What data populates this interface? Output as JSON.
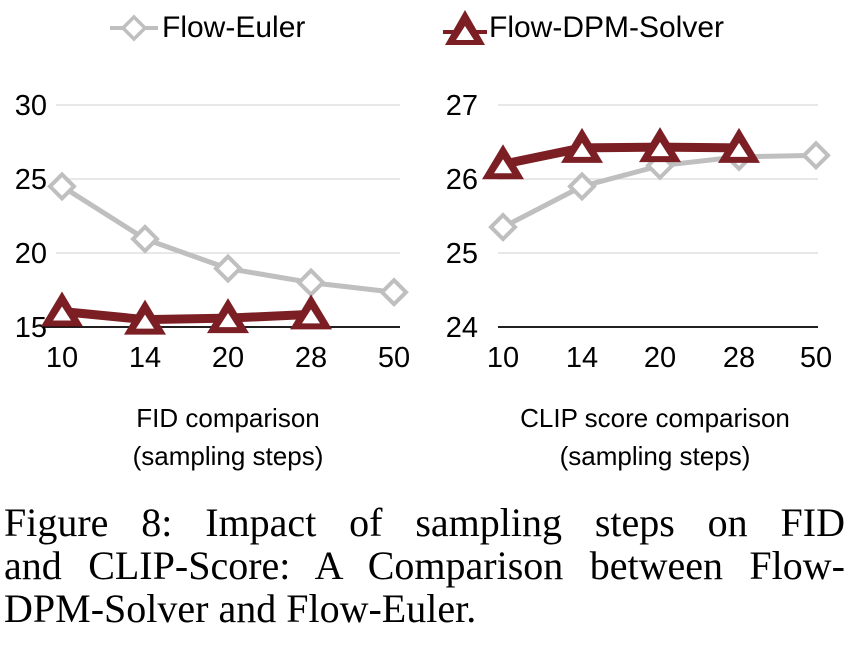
{
  "legend": {
    "items": [
      {
        "label": "Flow-Euler",
        "marker": "diamond"
      },
      {
        "label": "Flow-DPM-Solver",
        "marker": "triangle"
      }
    ]
  },
  "colors": {
    "flow_euler": "#BFBFBF",
    "flow_dpm_solver": "#7B1F25",
    "gridline": "#D9D9D9",
    "axis": "#000000"
  },
  "chart_data": [
    {
      "type": "line",
      "title": "FID comparison",
      "subtitle": "(sampling steps)",
      "categories": [
        "10",
        "14",
        "20",
        "28",
        "50"
      ],
      "ylim": [
        15,
        30
      ],
      "yticks": [
        15,
        20,
        25,
        30
      ],
      "grid": true,
      "legend_position": "top",
      "series": [
        {
          "name": "Flow-Euler",
          "marker": "diamond",
          "color": "#BFBFBF",
          "values": [
            24.5,
            20.95,
            18.95,
            18.0,
            17.35
          ]
        },
        {
          "name": "Flow-DPM-Solver",
          "marker": "triangle",
          "color": "#7B1F25",
          "values": [
            16.05,
            15.5,
            15.6,
            15.85,
            null
          ]
        }
      ]
    },
    {
      "type": "line",
      "title": "CLIP score comparison",
      "subtitle": "(sampling steps)",
      "categories": [
        "10",
        "14",
        "20",
        "28",
        "50"
      ],
      "ylim": [
        24,
        27
      ],
      "yticks": [
        24,
        25,
        26,
        27
      ],
      "grid": true,
      "legend_position": "top",
      "series": [
        {
          "name": "Flow-Euler",
          "marker": "diamond",
          "color": "#BFBFBF",
          "values": [
            25.35,
            25.9,
            26.18,
            26.3,
            26.32
          ]
        },
        {
          "name": "Flow-DPM-Solver",
          "marker": "triangle",
          "color": "#7B1F25",
          "values": [
            26.2,
            26.42,
            26.43,
            26.42,
            null
          ]
        }
      ]
    }
  ],
  "caption": {
    "lines": [
      "Figure 8:  Impact of sampling steps on FID",
      "and CLIP-Score: A Comparison between Flow-",
      "DPM-Solver and Flow-Euler."
    ]
  }
}
